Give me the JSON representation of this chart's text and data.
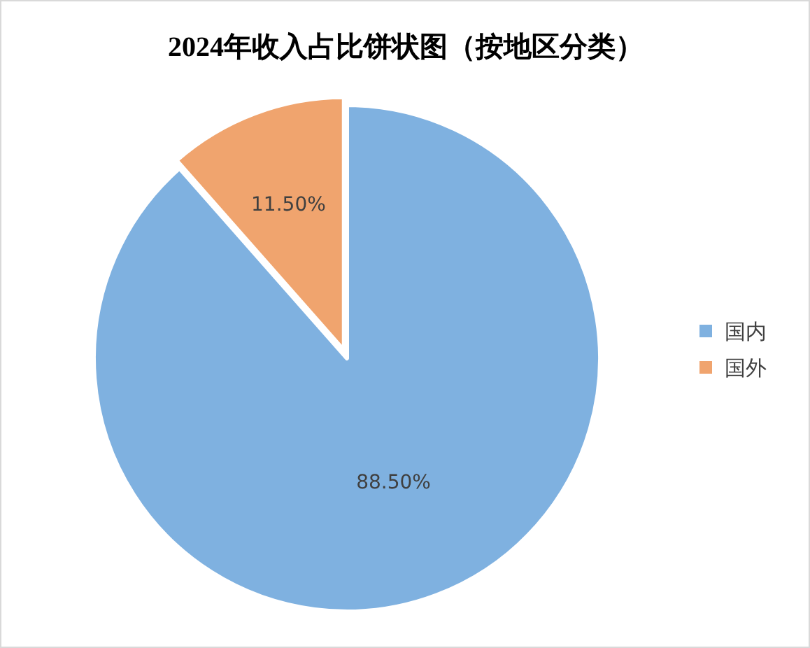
{
  "chart_data": {
    "type": "pie",
    "title": "2024年收入占比饼状图（按地区分类）",
    "categories": [
      "国内",
      "国外"
    ],
    "values": [
      88.5,
      11.5
    ],
    "value_labels": [
      "88.50%",
      "11.50%"
    ],
    "colors": [
      "#7fb1e0",
      "#f0a46e"
    ],
    "legend": "right"
  }
}
